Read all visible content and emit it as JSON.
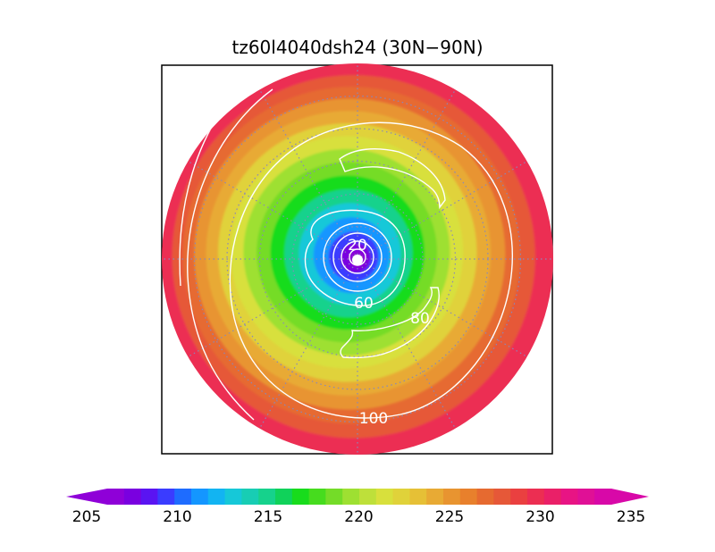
{
  "chart_data": {
    "type": "heatmap",
    "title": "tz60l4040dsh24 (30N−90N)",
    "projection": "north-polar-stereographic",
    "region": "30N-90N",
    "colorbar": {
      "min": 205,
      "max": 235,
      "step": 1,
      "tick_values": [
        205,
        210,
        215,
        220,
        225,
        230,
        235
      ],
      "tick_labels": [
        "205",
        "210",
        "215",
        "220",
        "225",
        "230",
        "235"
      ],
      "extend": "both",
      "colors": [
        "#8f00d8",
        "#7a00e0",
        "#5a14f2",
        "#3a3cff",
        "#1e6cff",
        "#1496ff",
        "#12b4f2",
        "#16c8d8",
        "#18cdb4",
        "#16d28c",
        "#10d25a",
        "#18dc1c",
        "#46dc1e",
        "#74dc28",
        "#9ee032",
        "#bee03a",
        "#d8e03c",
        "#e0d23a",
        "#e6c036",
        "#e8aa34",
        "#e89430",
        "#e8802c",
        "#e66a30",
        "#e65838",
        "#ea4040",
        "#ec2e52",
        "#ea2068",
        "#e81484",
        "#e01096",
        "#d808a8"
      ]
    },
    "field_rings": [
      {
        "lat": 90,
        "value": 205
      },
      {
        "lat": 87,
        "value": 206
      },
      {
        "lat": 84,
        "value": 208
      },
      {
        "lat": 80,
        "value": 210
      },
      {
        "lat": 76,
        "value": 212
      },
      {
        "lat": 72,
        "value": 214
      },
      {
        "lat": 68,
        "value": 216
      },
      {
        "lat": 64,
        "value": 218
      },
      {
        "lat": 60,
        "value": 219.5
      },
      {
        "lat": 56,
        "value": 221
      },
      {
        "lat": 52,
        "value": 222.5
      },
      {
        "lat": 48,
        "value": 224
      },
      {
        "lat": 44,
        "value": 225.5
      },
      {
        "lat": 40,
        "value": 227
      },
      {
        "lat": 36,
        "value": 228.5
      },
      {
        "lat": 30,
        "value": 230
      }
    ],
    "contours": [
      {
        "label": "20",
        "value": 20
      },
      {
        "label": "60",
        "value": 60
      },
      {
        "label": "80",
        "value": 80
      },
      {
        "label": "100",
        "value": 100
      }
    ],
    "graticule": {
      "lats": [
        40,
        50,
        60,
        70,
        80
      ],
      "lon_step": 30,
      "style": "dotted"
    }
  }
}
